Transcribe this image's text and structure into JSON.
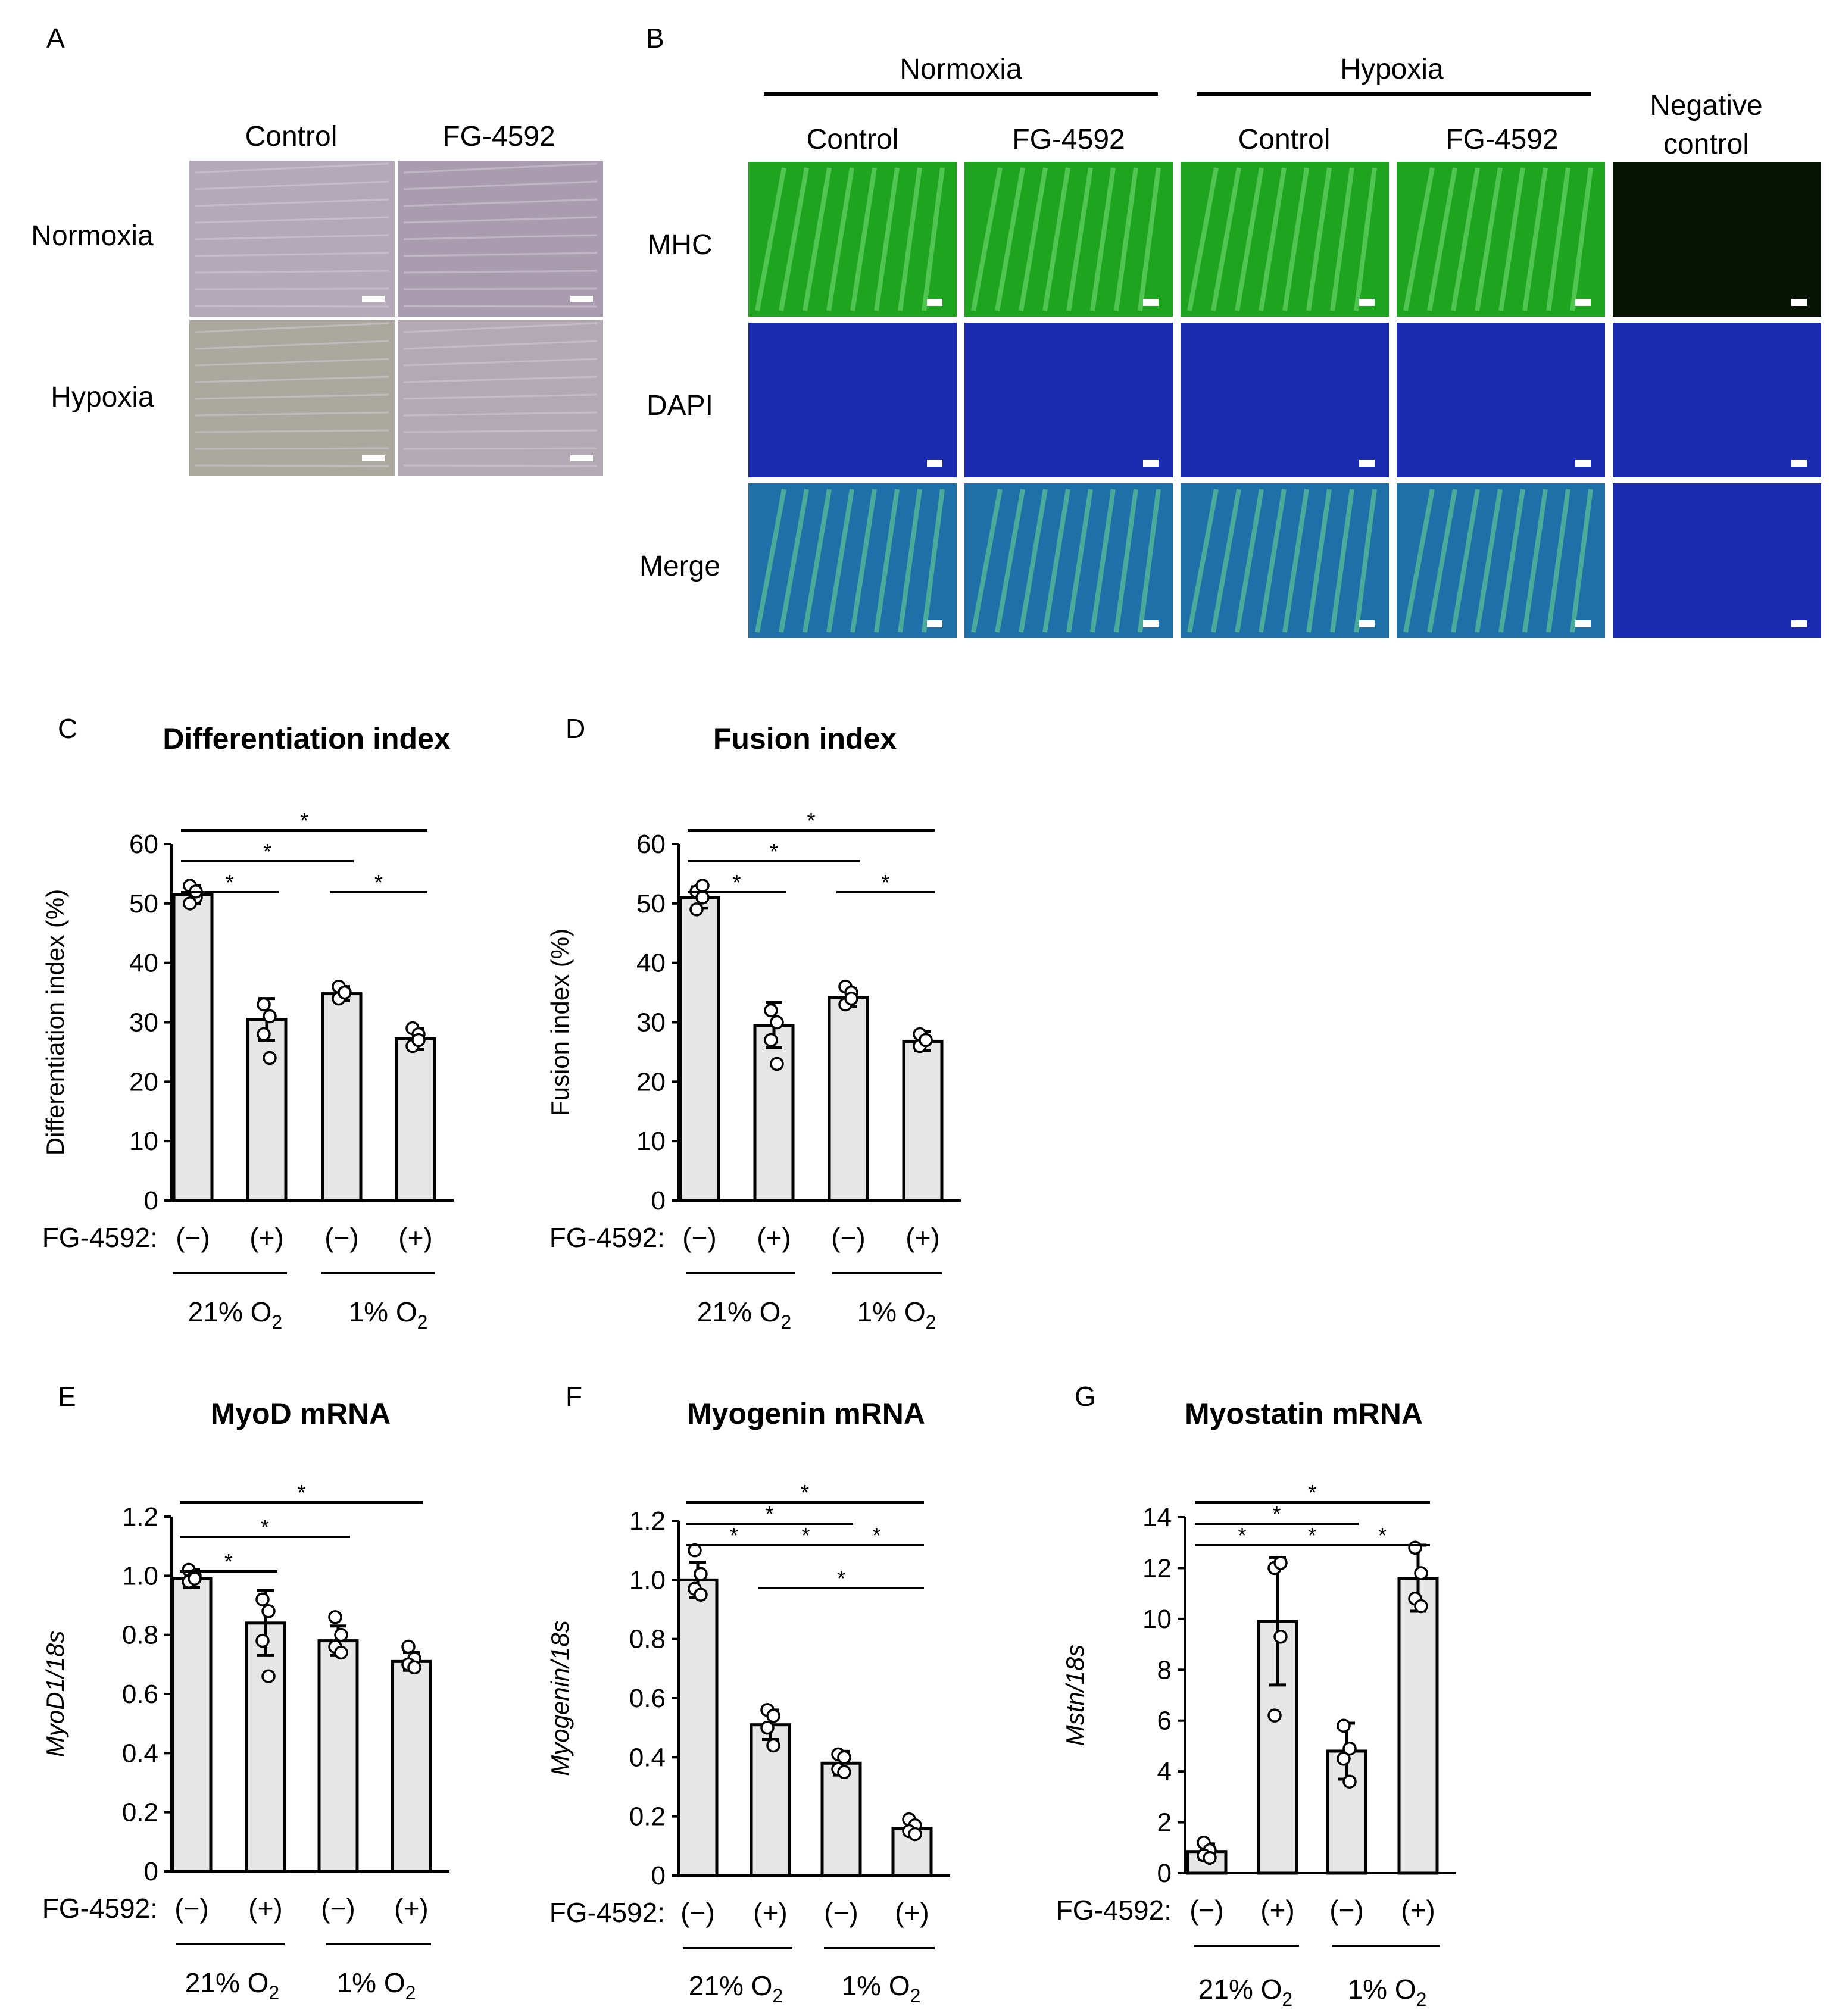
{
  "panels": {
    "A": {
      "label": "A",
      "columns": [
        "Control",
        "FG-4592"
      ],
      "rows": [
        "Normoxia",
        "Hypoxia"
      ],
      "image_color": "#b4a9b8"
    },
    "B": {
      "label": "B",
      "groups": [
        "Normoxia",
        "Hypoxia"
      ],
      "columns": [
        "Control",
        "FG-4592",
        "Control",
        "FG-4592"
      ],
      "negative_control": [
        "Negative",
        "control"
      ],
      "rows": [
        "MHC",
        "DAPI",
        "Merge"
      ],
      "colors": {
        "mhc": "#1fa41f",
        "dapi": "#1a2bb0",
        "merge": "#1f6fa8",
        "negative": "#061406"
      }
    }
  },
  "chart_data": [
    {
      "id": "C",
      "label": "C",
      "type": "bar",
      "title": "Differentiation index",
      "ylabel": "Differentiation index (%)",
      "ylabel_italic": false,
      "ylim": [
        0,
        60
      ],
      "yticks": [
        0,
        10,
        20,
        30,
        40,
        50,
        60
      ],
      "xlabel_prefix": "FG-4592:",
      "categories": [
        "(−)",
        "(+)",
        "(−)",
        "(+)"
      ],
      "groups": [
        {
          "main": "21% O",
          "sub": "2"
        },
        {
          "main": "1% O",
          "sub": "2"
        }
      ],
      "values": [
        51.5,
        30.5,
        34.8,
        27.2
      ],
      "errors": [
        1.5,
        3.5,
        1.2,
        1.8
      ],
      "points": [
        [
          53,
          51,
          50,
          52
        ],
        [
          33,
          31,
          28,
          24
        ],
        [
          36,
          35,
          34,
          35
        ],
        [
          29,
          28,
          26,
          27
        ]
      ],
      "significance": [
        {
          "from": 0,
          "to": 1,
          "label": "*"
        },
        {
          "from": 2,
          "to": 3,
          "label": "*"
        },
        {
          "from": 0,
          "to": 2,
          "label": "*"
        },
        {
          "from": 0,
          "to": 3,
          "label": "*"
        }
      ]
    },
    {
      "id": "D",
      "label": "D",
      "type": "bar",
      "title": "Fusion index",
      "ylabel": "Fusion index (%)",
      "ylabel_italic": false,
      "ylim": [
        0,
        60
      ],
      "yticks": [
        0,
        10,
        20,
        30,
        40,
        50,
        60
      ],
      "xlabel_prefix": "FG-4592:",
      "categories": [
        "(−)",
        "(+)",
        "(−)",
        "(+)"
      ],
      "groups": [
        {
          "main": "21% O",
          "sub": "2"
        },
        {
          "main": "1% O",
          "sub": "2"
        }
      ],
      "values": [
        51,
        29.5,
        34.2,
        26.8
      ],
      "errors": [
        1.8,
        3.8,
        1.5,
        1.6
      ],
      "points": [
        [
          52,
          51,
          49,
          53
        ],
        [
          32,
          30,
          27,
          23
        ],
        [
          36,
          35,
          33,
          34
        ],
        [
          28,
          27,
          26,
          27
        ]
      ],
      "significance": [
        {
          "from": 0,
          "to": 1,
          "label": "*"
        },
        {
          "from": 2,
          "to": 3,
          "label": "*"
        },
        {
          "from": 0,
          "to": 2,
          "label": "*"
        },
        {
          "from": 0,
          "to": 3,
          "label": "*"
        }
      ]
    },
    {
      "id": "E",
      "label": "E",
      "type": "bar",
      "title": "MyoD mRNA",
      "ylabel": "MyoD1/18s",
      "ylabel_italic": true,
      "ylim": [
        0,
        1.2
      ],
      "yticks": [
        "0",
        "0.2",
        "0.4",
        "0.6",
        "0.8",
        "1.0",
        "1.2"
      ],
      "xlabel_prefix": "FG-4592:",
      "categories": [
        "(−)",
        "(+)",
        "(−)",
        "(+)"
      ],
      "groups": [
        {
          "main": "21% O",
          "sub": "2"
        },
        {
          "main": "1% O",
          "sub": "2"
        }
      ],
      "values": [
        0.99,
        0.84,
        0.78,
        0.71
      ],
      "errors": [
        0.03,
        0.11,
        0.05,
        0.03
      ],
      "points": [
        [
          1.02,
          1.0,
          0.98,
          0.99
        ],
        [
          0.92,
          0.88,
          0.78,
          0.66
        ],
        [
          0.86,
          0.8,
          0.76,
          0.74
        ],
        [
          0.76,
          0.72,
          0.7,
          0.69
        ]
      ],
      "significance": [
        {
          "from": 0,
          "to": 1,
          "label": "*"
        },
        {
          "from": 0,
          "to": 2,
          "label": "*"
        },
        {
          "from": 0,
          "to": 3,
          "label": "*"
        }
      ]
    },
    {
      "id": "F",
      "label": "F",
      "type": "bar",
      "title": "Myogenin mRNA",
      "ylabel": "Myogenin/18s",
      "ylabel_italic": true,
      "ylim": [
        0,
        1.2
      ],
      "yticks": [
        "0",
        "0.2",
        "0.4",
        "0.6",
        "0.8",
        "1.0",
        "1.2"
      ],
      "xlabel_prefix": "FG-4592:",
      "categories": [
        "(−)",
        "(+)",
        "(−)",
        "(+)"
      ],
      "groups": [
        {
          "main": "21% O",
          "sub": "2"
        },
        {
          "main": "1% O",
          "sub": "2"
        }
      ],
      "values": [
        1.0,
        0.51,
        0.38,
        0.16
      ],
      "errors": [
        0.06,
        0.05,
        0.04,
        0.02
      ],
      "points": [
        [
          1.1,
          1.02,
          0.97,
          0.95
        ],
        [
          0.56,
          0.54,
          0.5,
          0.44
        ],
        [
          0.41,
          0.4,
          0.36,
          0.35
        ],
        [
          0.19,
          0.17,
          0.15,
          0.14
        ]
      ],
      "significance": [
        {
          "from": 0,
          "to": 1,
          "label": "*"
        },
        {
          "from": 1,
          "to": 2,
          "label": "*"
        },
        {
          "from": 2,
          "to": 3,
          "label": "*"
        },
        {
          "from": 1,
          "to": 3,
          "label": "*"
        },
        {
          "from": 0,
          "to": 2,
          "label": "*"
        },
        {
          "from": 0,
          "to": 3,
          "label": "*"
        }
      ]
    },
    {
      "id": "G",
      "label": "G",
      "type": "bar",
      "title": "Myostatin mRNA",
      "ylabel": "Mstn/18s",
      "ylabel_italic": true,
      "ylim": [
        0,
        14
      ],
      "yticks": [
        0,
        2,
        4,
        6,
        8,
        10,
        12,
        14
      ],
      "xlabel_prefix": "FG-4592:",
      "categories": [
        "(−)",
        "(+)",
        "(−)",
        "(+)"
      ],
      "groups": [
        {
          "main": "21% O",
          "sub": "2"
        },
        {
          "main": "1% O",
          "sub": "2"
        }
      ],
      "values": [
        0.85,
        9.9,
        4.8,
        11.6
      ],
      "errors": [
        0.3,
        2.5,
        1.1,
        1.3
      ],
      "points": [
        [
          1.2,
          0.9,
          0.7,
          0.6
        ],
        [
          12.0,
          9.3,
          6.2,
          12.2
        ],
        [
          5.8,
          4.9,
          4.5,
          3.6
        ],
        [
          12.8,
          11.8,
          10.8,
          10.5
        ]
      ],
      "significance": [
        {
          "from": 0,
          "to": 1,
          "label": "*"
        },
        {
          "from": 1,
          "to": 2,
          "label": "*"
        },
        {
          "from": 2,
          "to": 3,
          "label": "*"
        },
        {
          "from": 0,
          "to": 2,
          "label": "*"
        },
        {
          "from": 0,
          "to": 3,
          "label": "*"
        }
      ]
    }
  ]
}
